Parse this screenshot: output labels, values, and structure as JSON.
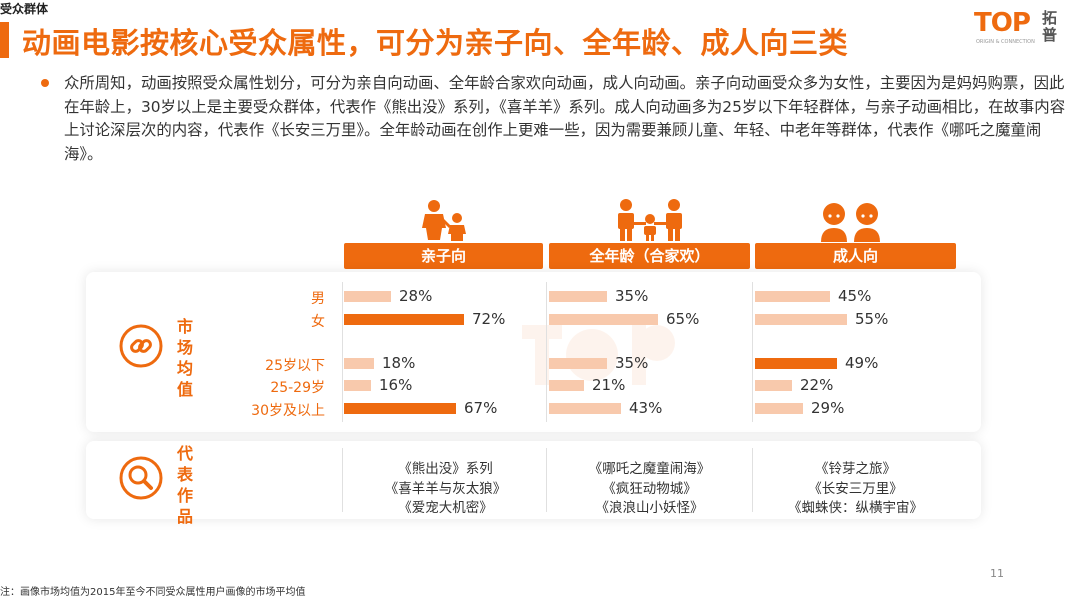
{
  "header": {
    "section_tag": "受众群体",
    "title": "动画电影按核心受众属性，可分为亲子向、全年龄、成人向三类",
    "logo_text": "TOP",
    "logo_sub": "ORIGIN & CONNECTION",
    "logo_cn": "拓普"
  },
  "intro": "众所周知，动画按照受众属性划分，可分为亲自向动画、全年龄合家欢向动画，成人向动画。亲子向动画受众多为女性，主要因为是妈妈购票，因此在年龄上，30岁以上是主要受众群体，代表作《熊出没》系列，《喜羊羊》系列。成人向动画多为25岁以下年轻群体，与亲子动画相比，在故事内容上讨论深层次的内容，代表作《长安三万里》。全年龄动画在创作上更难一些，因为需要兼顾儿童、年轻、中老年等群体，代表作《哪吒之魔童闹海》。",
  "sections": {
    "market_title": "市场均值",
    "works_title": "代表作品"
  },
  "colors": {
    "accent": "#ee6a0f",
    "light": "#f8c9ac"
  },
  "chart_data": {
    "type": "bar",
    "orientation": "horizontal",
    "unit": "%",
    "categories": [
      "男",
      "女",
      "25岁以下",
      "25-29岁",
      "30岁及以上"
    ],
    "series": [
      {
        "name": "亲子向",
        "values": [
          28,
          72,
          18,
          16,
          67
        ],
        "highlight": [
          false,
          true,
          false,
          false,
          true
        ]
      },
      {
        "name": "全年龄（合家欢）",
        "values": [
          35,
          65,
          35,
          21,
          43
        ],
        "highlight": [
          false,
          false,
          false,
          false,
          false
        ]
      },
      {
        "name": "成人向",
        "values": [
          45,
          55,
          49,
          22,
          29
        ],
        "highlight": [
          false,
          false,
          true,
          false,
          false
        ]
      }
    ],
    "labels": [
      [
        "28%",
        "72%",
        "18%",
        "16%",
        "67%"
      ],
      [
        "35%",
        "65%",
        "35%",
        "21%",
        "43%"
      ],
      [
        "45%",
        "55%",
        "49%",
        "22%",
        "29%"
      ]
    ]
  },
  "works": [
    [
      "《熊出没》系列",
      "《喜羊羊与灰太狼》",
      "《爱宠大机密》"
    ],
    [
      "《哪吒之魔童闹海》",
      "《疯狂动物城》",
      "《浪浪山小妖怪》"
    ],
    [
      "《铃芽之旅》",
      "《长安三万里》",
      "《蜘蛛侠：纵横宇宙》"
    ]
  ],
  "footnote": "注：画像市场均值为2015年至今不同受众属性用户画像的市场平均值",
  "page_number": "11"
}
